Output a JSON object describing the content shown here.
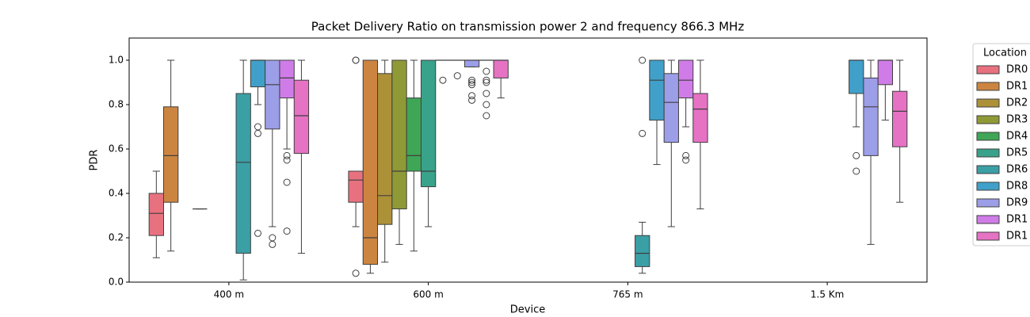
{
  "chart_data": {
    "type": "box",
    "title": "Packet Delivery Ratio on transmission power 2 and frequency 866.3 MHz",
    "x_label": "Device",
    "y_label": "PDR",
    "categories": [
      "400 m",
      "600 m",
      "765 m",
      "1.5 Km"
    ],
    "ylim": [
      0,
      1.1
    ],
    "yticks": [
      {
        "value": 0,
        "label": "0.0"
      },
      0.2,
      0.4,
      0.6,
      0.8,
      {
        "value": 1,
        "label": "1.0"
      }
    ],
    "legend_title": "Location",
    "legend": "outside right",
    "series": [
      {
        "name": "DR0",
        "color": "#e8717f",
        "values": [
          {
            "low": 0.11,
            "q1": 0.21,
            "median": 0.31,
            "q3": 0.4,
            "high": 0.5,
            "fliers": []
          },
          {
            "low": 0.25,
            "q1": 0.36,
            "median": 0.46,
            "q3": 0.5,
            "high": 0.5,
            "fliers": [
              1.0,
              1.0,
              0.04
            ]
          },
          null,
          null
        ]
      },
      {
        "name": "DR1",
        "color": "#cc8540",
        "values": [
          {
            "low": 0.14,
            "q1": 0.36,
            "median": 0.57,
            "q3": 0.79,
            "high": 1.0,
            "fliers": []
          },
          {
            "low": 0.04,
            "q1": 0.08,
            "median": 0.2,
            "q3": 1.0,
            "high": 1.0,
            "fliers": []
          },
          null,
          null
        ]
      },
      {
        "name": "DR2",
        "color": "#ad9139",
        "values": [
          null,
          {
            "low": 0.09,
            "q1": 0.26,
            "median": 0.39,
            "q3": 0.94,
            "high": 1.0,
            "fliers": []
          },
          null,
          null
        ]
      },
      {
        "name": "DR3",
        "color": "#8f9a36",
        "values": [
          {
            "low": 0.33,
            "q1": 0.33,
            "median": 0.33,
            "q3": 0.33,
            "high": 0.33,
            "fliers": []
          },
          {
            "low": 0.17,
            "q1": 0.33,
            "median": 0.5,
            "q3": 1.0,
            "high": 1.0,
            "fliers": []
          },
          null,
          null
        ]
      },
      {
        "name": "DR4",
        "color": "#3ea656",
        "values": [
          null,
          {
            "low": 0.14,
            "q1": 0.5,
            "median": 0.57,
            "q3": 0.83,
            "high": 1.0,
            "fliers": []
          },
          null,
          null
        ]
      },
      {
        "name": "DR5",
        "color": "#39a28a",
        "values": [
          null,
          {
            "low": 0.25,
            "q1": 0.43,
            "median": 0.5,
            "q3": 1.0,
            "high": 1.0,
            "fliers": []
          },
          null,
          null
        ]
      },
      {
        "name": "DR6",
        "color": "#3b9fa6",
        "values": [
          {
            "low": 0.01,
            "q1": 0.13,
            "median": 0.54,
            "q3": 0.85,
            "high": 1.0,
            "fliers": []
          },
          {
            "low": 1.0,
            "q1": 1.0,
            "median": 1.0,
            "q3": 1.0,
            "high": 1.0,
            "fliers": [
              0.91
            ]
          },
          {
            "low": 0.04,
            "q1": 0.07,
            "median": 0.13,
            "q3": 0.21,
            "high": 0.27,
            "fliers": [
              1.0,
              0.67
            ]
          },
          null
        ]
      },
      {
        "name": "DR8",
        "color": "#41a0c9",
        "values": [
          {
            "low": 0.8,
            "q1": 0.88,
            "median": 1.0,
            "q3": 1.0,
            "high": 1.0,
            "fliers": [
              0.7,
              0.67,
              0.22
            ]
          },
          {
            "low": 1.0,
            "q1": 1.0,
            "median": 1.0,
            "q3": 1.0,
            "high": 1.0,
            "fliers": [
              0.93
            ]
          },
          {
            "low": 0.53,
            "q1": 0.73,
            "median": 0.91,
            "q3": 1.0,
            "high": 1.0,
            "fliers": []
          },
          {
            "low": 0.7,
            "q1": 0.85,
            "median": 1.0,
            "q3": 1.0,
            "high": 1.0,
            "fliers": [
              0.57,
              0.5
            ]
          }
        ]
      },
      {
        "name": "DR9",
        "color": "#9c9ee8",
        "values": [
          {
            "low": 0.25,
            "q1": 0.69,
            "median": 0.89,
            "q3": 1.0,
            "high": 1.0,
            "fliers": [
              0.2,
              0.17
            ]
          },
          {
            "low": 0.97,
            "q1": 0.97,
            "median": 1.0,
            "q3": 1.0,
            "high": 1.0,
            "fliers": [
              0.91,
              0.9,
              0.89,
              0.84,
              0.82
            ]
          },
          {
            "low": 0.25,
            "q1": 0.63,
            "median": 0.81,
            "q3": 0.94,
            "high": 1.0,
            "fliers": []
          },
          {
            "low": 0.17,
            "q1": 0.57,
            "median": 0.79,
            "q3": 0.92,
            "high": 1.0,
            "fliers": []
          }
        ]
      },
      {
        "name": "DR1",
        "color": "#d07ce8",
        "values": [
          {
            "low": 0.6,
            "q1": 0.83,
            "median": 0.92,
            "q3": 1.0,
            "high": 1.0,
            "fliers": [
              0.57,
              0.55,
              0.45,
              0.23
            ]
          },
          {
            "low": 1.0,
            "q1": 1.0,
            "median": 1.0,
            "q3": 1.0,
            "high": 1.0,
            "fliers": [
              0.95,
              0.91,
              0.9,
              0.85,
              0.8,
              0.75
            ]
          },
          {
            "low": 0.7,
            "q1": 0.83,
            "median": 0.91,
            "q3": 1.0,
            "high": 1.0,
            "fliers": [
              0.57,
              0.55
            ]
          },
          {
            "low": 0.73,
            "q1": 0.89,
            "median": 1.0,
            "q3": 1.0,
            "high": 1.0,
            "fliers": []
          }
        ]
      },
      {
        "name": "DR1",
        "color": "#e672c4",
        "values": [
          {
            "low": 0.13,
            "q1": 0.58,
            "median": 0.75,
            "q3": 0.91,
            "high": 1.0,
            "fliers": []
          },
          {
            "low": 0.83,
            "q1": 0.92,
            "median": 1.0,
            "q3": 1.0,
            "high": 1.0,
            "fliers": []
          },
          {
            "low": 0.33,
            "q1": 0.63,
            "median": 0.78,
            "q3": 0.85,
            "high": 1.0,
            "fliers": []
          },
          {
            "low": 0.36,
            "q1": 0.61,
            "median": 0.77,
            "q3": 0.86,
            "high": 1.0,
            "fliers": []
          }
        ]
      }
    ]
  }
}
